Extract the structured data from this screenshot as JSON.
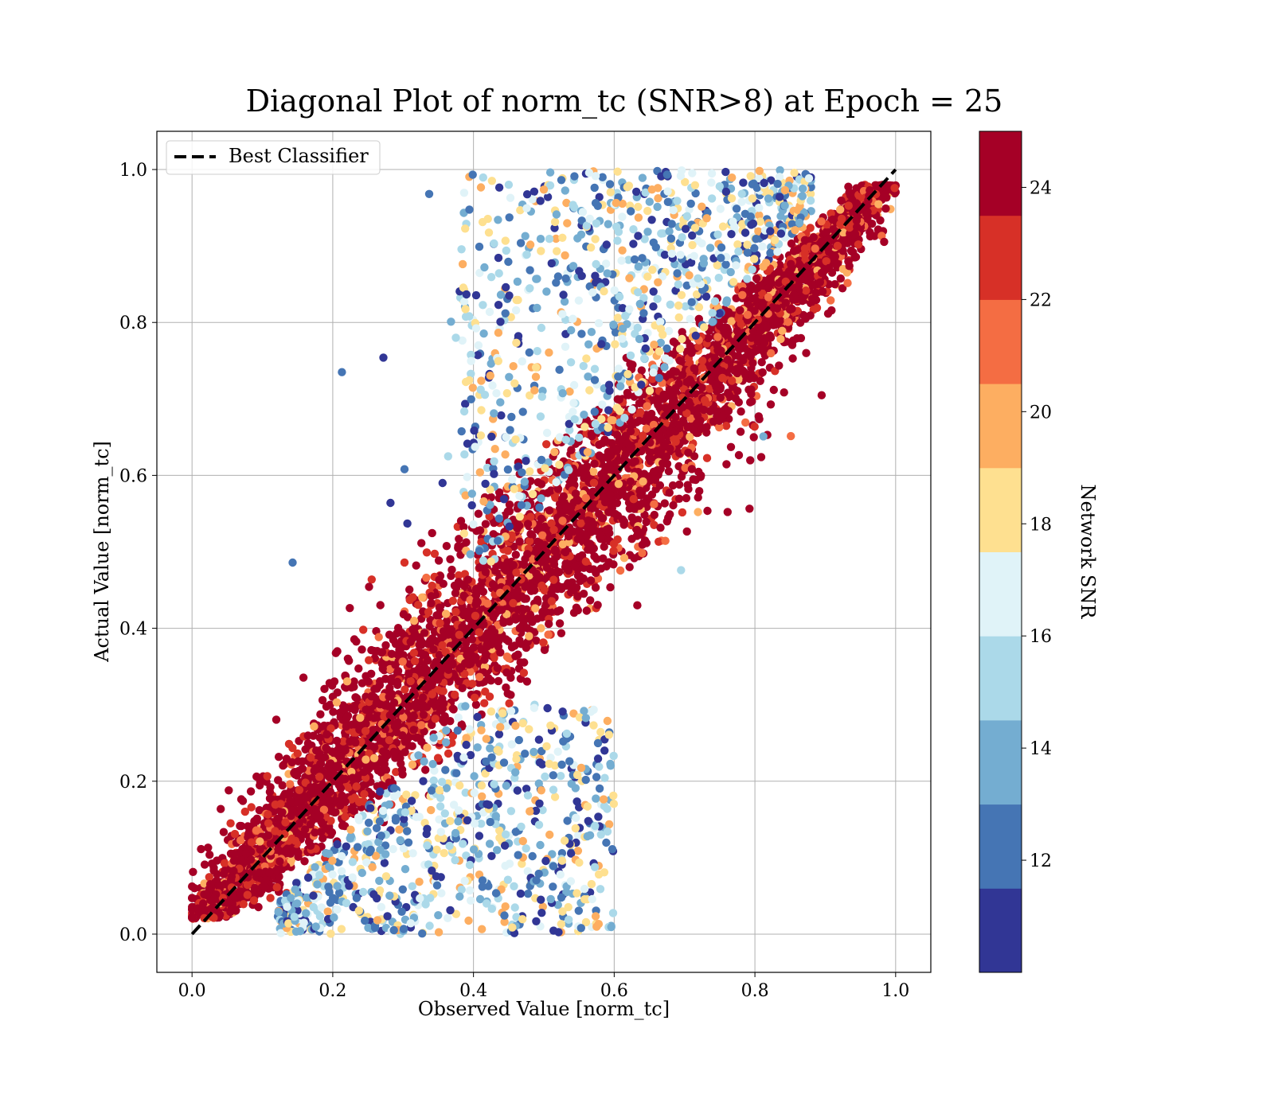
{
  "chart_data": {
    "type": "scatter",
    "title": "Diagonal Plot of norm_tc (SNR>8) at Epoch = 25",
    "xlabel": "Observed Value [norm_tc]",
    "ylabel": "Actual Value [norm_tc]",
    "xlim": [
      -0.05,
      1.05
    ],
    "ylim": [
      -0.05,
      1.05
    ],
    "xticks": [
      0.0,
      0.2,
      0.4,
      0.6,
      0.8,
      1.0
    ],
    "yticks": [
      0.0,
      0.2,
      0.4,
      0.6,
      0.8,
      1.0
    ],
    "xtick_labels": [
      "0.0",
      "0.2",
      "0.4",
      "0.6",
      "0.8",
      "1.0"
    ],
    "ytick_labels": [
      "0.0",
      "0.2",
      "0.4",
      "0.6",
      "0.8",
      "1.0"
    ],
    "grid": true,
    "legend": {
      "placement": "upper-left",
      "entries": [
        {
          "label": "Best Classifier",
          "style": "dashed",
          "color": "#000000"
        }
      ]
    },
    "reference_line": {
      "label": "Best Classifier",
      "x": [
        0.0,
        1.0
      ],
      "y": [
        0.0,
        1.0
      ],
      "style": "dashed",
      "color": "#000000"
    },
    "colorbar": {
      "label": "Network SNR",
      "range": [
        10,
        25
      ],
      "ticks": [
        12,
        14,
        16,
        18,
        20,
        22,
        24
      ],
      "tick_labels": [
        "12",
        "14",
        "16",
        "18",
        "20",
        "22",
        "24"
      ],
      "colors": [
        "#313695",
        "#4575b4",
        "#74add1",
        "#abd9e9",
        "#e0f3f8",
        "#fee090",
        "#fdae61",
        "#f46d43",
        "#d73027",
        "#a50026"
      ]
    },
    "scatter_description": {
      "band_center": "y = x",
      "high_snr_band_color_value": 24.5,
      "notes_removed": true
    },
    "series": [
      {
        "name": "",
        "points": [
          [
            0.213,
            0.735
          ],
          [
            0.272,
            0.754
          ],
          [
            0.143,
            0.486
          ],
          [
            0.337,
            0.968
          ],
          [
            0.695,
            0.476
          ],
          [
            0.812,
            0.651
          ],
          [
            0.553,
            0.008
          ],
          [
            0.375,
            0.78
          ],
          [
            0.368,
            0.801
          ],
          [
            0.394,
            0.808
          ],
          [
            0.302,
            0.608
          ],
          [
            0.562,
            0.128
          ],
          [
            0.306,
            0.537
          ],
          [
            0.282,
            0.564
          ],
          [
            0.356,
            0.59
          ],
          [
            0.364,
            0.625
          ]
        ]
      }
    ]
  }
}
